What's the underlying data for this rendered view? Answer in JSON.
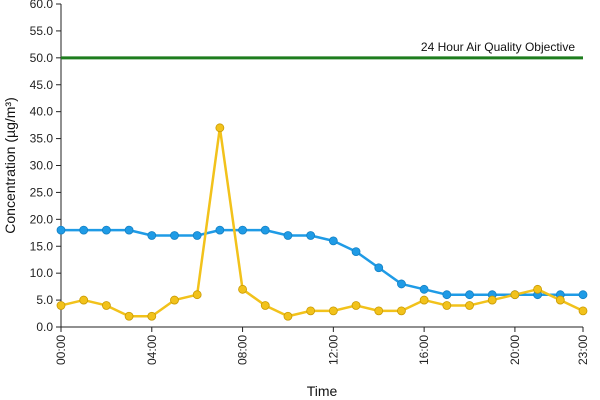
{
  "chart_data": {
    "type": "line",
    "xlabel": "Time",
    "ylabel": "Concentration (µg/m³)",
    "ylim": [
      0,
      60
    ],
    "xlim": [
      0,
      23
    ],
    "y_ticks": [
      "0.0",
      "5.0",
      "10.0",
      "15.0",
      "20.0",
      "25.0",
      "30.0",
      "35.0",
      "40.0",
      "45.0",
      "50.0",
      "55.0",
      "60.0"
    ],
    "x_ticks": [
      {
        "x": 0,
        "label": "00:00"
      },
      {
        "x": 4,
        "label": "04:00"
      },
      {
        "x": 8,
        "label": "08:00"
      },
      {
        "x": 12,
        "label": "12:00"
      },
      {
        "x": 16,
        "label": "16:00"
      },
      {
        "x": 20,
        "label": "20:00"
      },
      {
        "x": 23,
        "label": "23:00"
      }
    ],
    "grid": false,
    "objective": {
      "label": "24 Hour Air Quality Objective",
      "value": 50,
      "color": "#1e7d1e"
    },
    "series": [
      {
        "color": "#1f9be6",
        "x": [
          0,
          1,
          2,
          3,
          4,
          5,
          6,
          7,
          8,
          9,
          10,
          11,
          12,
          13,
          14,
          15,
          16,
          17,
          18,
          19,
          20,
          21,
          22,
          23
        ],
        "values": [
          18,
          18,
          18,
          18,
          17,
          17,
          17,
          18,
          18,
          18,
          17,
          17,
          16,
          14,
          11,
          8,
          7,
          6,
          6,
          6,
          6,
          6,
          6,
          6
        ]
      },
      {
        "color": "#f2c21b",
        "x": [
          0,
          1,
          2,
          3,
          4,
          5,
          6,
          7,
          8,
          9,
          10,
          11,
          12,
          13,
          14,
          15,
          16,
          17,
          18,
          19,
          20,
          21,
          22,
          23
        ],
        "values": [
          4,
          5,
          4,
          2,
          2,
          5,
          6,
          37,
          7,
          4,
          2,
          3,
          3,
          4,
          3,
          3,
          5,
          4,
          4,
          5,
          6,
          7,
          5,
          3
        ]
      }
    ]
  }
}
